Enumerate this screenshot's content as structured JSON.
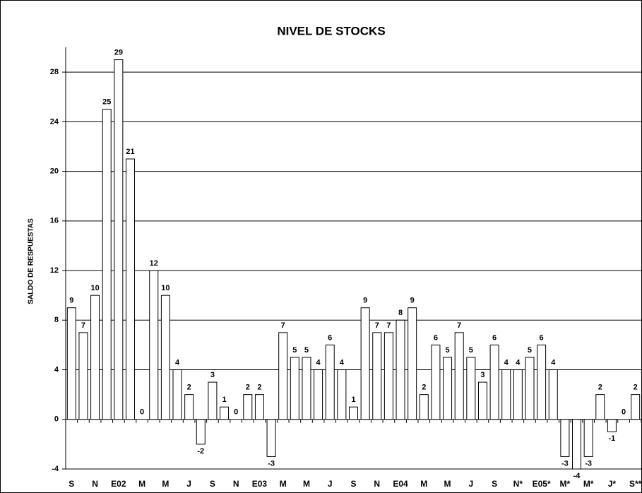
{
  "chart_data": {
    "type": "bar",
    "title": "NIVEL DE STOCKS",
    "y_label": "SALDO DE RESPUESTAS",
    "categories": [
      "S",
      null,
      "N",
      null,
      "E02",
      null,
      "M",
      null,
      "M",
      null,
      "J",
      null,
      "S",
      null,
      "N",
      null,
      "E03",
      null,
      "M",
      null,
      "M",
      null,
      "J",
      null,
      "S",
      null,
      "N",
      null,
      "E04",
      null,
      "M",
      null,
      "M",
      null,
      "J",
      null,
      "S",
      null,
      "N*",
      null,
      "E05*",
      null,
      "M*",
      null,
      "M*",
      null,
      "J*",
      null,
      "S**"
    ],
    "values": [
      9,
      7,
      10,
      25,
      29,
      21,
      0,
      12,
      10,
      4,
      2,
      -2,
      3,
      1,
      0,
      2,
      2,
      -3,
      7,
      5,
      5,
      4,
      6,
      4,
      1,
      9,
      7,
      7,
      8,
      9,
      2,
      6,
      5,
      7,
      5,
      3,
      6,
      4,
      4,
      5,
      6,
      4,
      -3,
      -4,
      -3,
      2,
      -1,
      0,
      2
    ],
    "color": "#ffffff",
    "ylim": [
      -4,
      30
    ],
    "yticks": [
      -4,
      0,
      4,
      8,
      12,
      16,
      20,
      24,
      28
    ],
    "grid": true
  }
}
